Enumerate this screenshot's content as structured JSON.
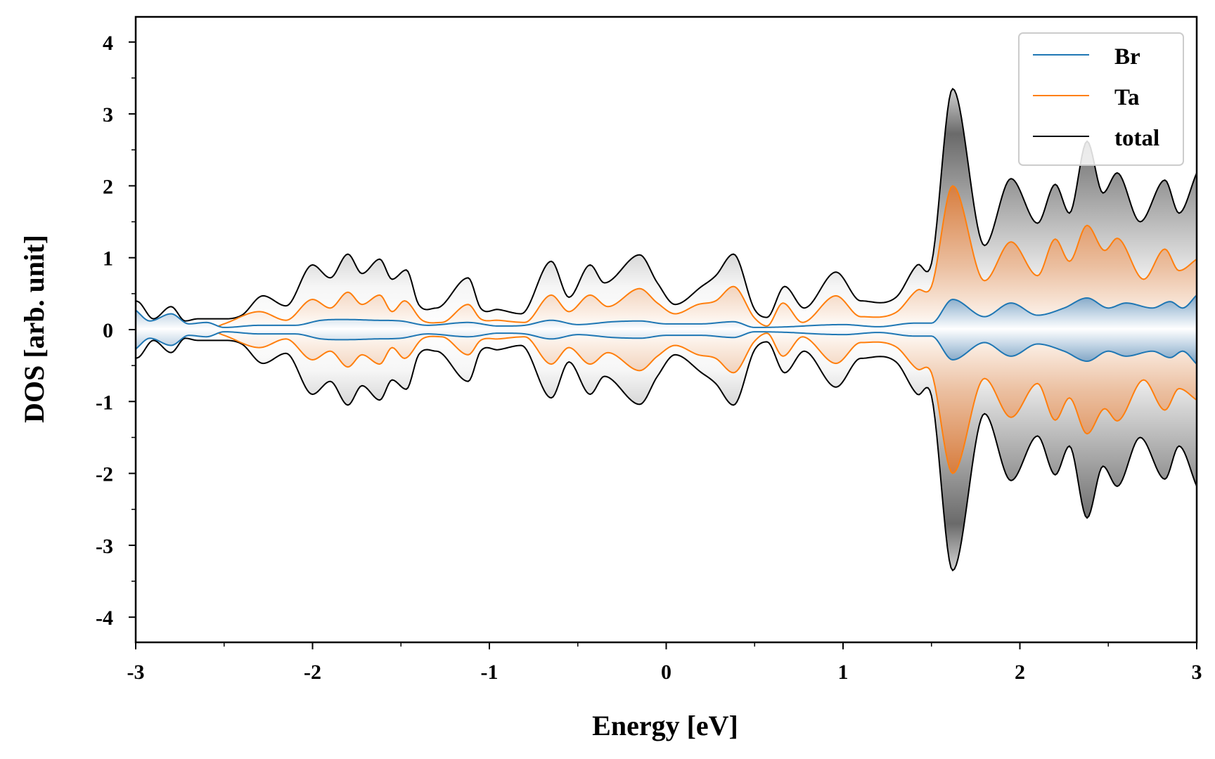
{
  "chart_data": {
    "type": "line",
    "title": "",
    "xlabel": "Energy [eV]",
    "ylabel": "DOS [arb. unit]",
    "xlim": [
      -3,
      3
    ],
    "ylim": [
      -4.35,
      4.35
    ],
    "x_ticks": [
      -3,
      -2,
      -1,
      0,
      1,
      2,
      3
    ],
    "x_tick_labels": [
      "-3",
      "-2",
      "-1",
      "0",
      "1",
      "2",
      "3"
    ],
    "y_ticks": [
      -4,
      -3,
      -2,
      -1,
      0,
      1,
      2,
      3,
      4
    ],
    "y_tick_labels": [
      "-4",
      "-3",
      "-2",
      "-1",
      "0",
      "1",
      "2",
      "3",
      "4"
    ],
    "symmetric_about_zero": true,
    "grid": false,
    "legend_position": "top-right",
    "legend": [
      "Br",
      "Ta",
      "total"
    ],
    "series": [
      {
        "name": "Br",
        "color": "#1f77b4",
        "fill": "gradient-blue",
        "points": [
          [
            -3.0,
            0.27
          ],
          [
            -2.92,
            0.12
          ],
          [
            -2.8,
            0.22
          ],
          [
            -2.7,
            0.08
          ],
          [
            -2.6,
            0.1
          ],
          [
            -2.5,
            0.03
          ],
          [
            -2.3,
            0.06
          ],
          [
            -2.1,
            0.06
          ],
          [
            -1.95,
            0.13
          ],
          [
            -1.8,
            0.14
          ],
          [
            -1.65,
            0.13
          ],
          [
            -1.5,
            0.12
          ],
          [
            -1.35,
            0.06
          ],
          [
            -1.12,
            0.1
          ],
          [
            -0.95,
            0.05
          ],
          [
            -0.8,
            0.06
          ],
          [
            -0.65,
            0.13
          ],
          [
            -0.5,
            0.07
          ],
          [
            -0.3,
            0.11
          ],
          [
            -0.15,
            0.12
          ],
          [
            0.0,
            0.08
          ],
          [
            0.2,
            0.08
          ],
          [
            0.38,
            0.11
          ],
          [
            0.5,
            0.03
          ],
          [
            0.7,
            0.04
          ],
          [
            0.85,
            0.06
          ],
          [
            1.0,
            0.07
          ],
          [
            1.2,
            0.04
          ],
          [
            1.4,
            0.09
          ],
          [
            1.5,
            0.09
          ],
          [
            1.62,
            0.42
          ],
          [
            1.8,
            0.18
          ],
          [
            1.95,
            0.37
          ],
          [
            2.1,
            0.2
          ],
          [
            2.25,
            0.3
          ],
          [
            2.38,
            0.44
          ],
          [
            2.5,
            0.3
          ],
          [
            2.6,
            0.37
          ],
          [
            2.75,
            0.3
          ],
          [
            2.85,
            0.39
          ],
          [
            2.92,
            0.3
          ],
          [
            3.0,
            0.48
          ]
        ]
      },
      {
        "name": "Ta",
        "color": "#ff7f0e",
        "fill": "gradient-orange",
        "points": [
          [
            -3.0,
            0.0
          ],
          [
            -2.8,
            0.0
          ],
          [
            -2.6,
            0.0
          ],
          [
            -2.5,
            0.08
          ],
          [
            -2.3,
            0.25
          ],
          [
            -2.15,
            0.13
          ],
          [
            -2.0,
            0.42
          ],
          [
            -1.9,
            0.3
          ],
          [
            -1.8,
            0.52
          ],
          [
            -1.72,
            0.35
          ],
          [
            -1.62,
            0.48
          ],
          [
            -1.55,
            0.25
          ],
          [
            -1.48,
            0.4
          ],
          [
            -1.38,
            0.13
          ],
          [
            -1.27,
            0.1
          ],
          [
            -1.12,
            0.35
          ],
          [
            -1.05,
            0.15
          ],
          [
            -0.95,
            0.13
          ],
          [
            -0.8,
            0.1
          ],
          [
            -0.65,
            0.48
          ],
          [
            -0.55,
            0.25
          ],
          [
            -0.43,
            0.48
          ],
          [
            -0.33,
            0.32
          ],
          [
            -0.15,
            0.57
          ],
          [
            -0.05,
            0.37
          ],
          [
            0.05,
            0.22
          ],
          [
            0.18,
            0.35
          ],
          [
            0.28,
            0.4
          ],
          [
            0.38,
            0.6
          ],
          [
            0.5,
            0.16
          ],
          [
            0.57,
            0.05
          ],
          [
            0.66,
            0.37
          ],
          [
            0.77,
            0.1
          ],
          [
            0.96,
            0.47
          ],
          [
            1.1,
            0.18
          ],
          [
            1.3,
            0.24
          ],
          [
            1.42,
            0.55
          ],
          [
            1.5,
            0.6
          ],
          [
            1.62,
            2.0
          ],
          [
            1.8,
            0.68
          ],
          [
            1.95,
            1.22
          ],
          [
            2.1,
            0.75
          ],
          [
            2.2,
            1.26
          ],
          [
            2.28,
            0.95
          ],
          [
            2.38,
            1.45
          ],
          [
            2.48,
            1.1
          ],
          [
            2.55,
            1.27
          ],
          [
            2.7,
            0.7
          ],
          [
            2.82,
            1.12
          ],
          [
            2.9,
            0.82
          ],
          [
            3.0,
            0.98
          ]
        ]
      },
      {
        "name": "total",
        "color": "#000000",
        "fill": "gradient-gray",
        "points": [
          [
            -3.0,
            0.4
          ],
          [
            -2.98,
            0.38
          ],
          [
            -2.9,
            0.15
          ],
          [
            -2.8,
            0.32
          ],
          [
            -2.72,
            0.12
          ],
          [
            -2.65,
            0.15
          ],
          [
            -2.5,
            0.15
          ],
          [
            -2.4,
            0.2
          ],
          [
            -2.28,
            0.47
          ],
          [
            -2.15,
            0.33
          ],
          [
            -2.0,
            0.9
          ],
          [
            -1.9,
            0.72
          ],
          [
            -1.8,
            1.05
          ],
          [
            -1.72,
            0.78
          ],
          [
            -1.62,
            0.98
          ],
          [
            -1.55,
            0.7
          ],
          [
            -1.47,
            0.83
          ],
          [
            -1.4,
            0.35
          ],
          [
            -1.3,
            0.3
          ],
          [
            -1.12,
            0.72
          ],
          [
            -1.05,
            0.3
          ],
          [
            -0.95,
            0.28
          ],
          [
            -0.82,
            0.22
          ],
          [
            -0.65,
            0.95
          ],
          [
            -0.55,
            0.45
          ],
          [
            -0.43,
            0.9
          ],
          [
            -0.35,
            0.65
          ],
          [
            -0.15,
            1.04
          ],
          [
            -0.05,
            0.65
          ],
          [
            0.05,
            0.35
          ],
          [
            0.2,
            0.6
          ],
          [
            0.28,
            0.75
          ],
          [
            0.38,
            1.05
          ],
          [
            0.5,
            0.28
          ],
          [
            0.57,
            0.17
          ],
          [
            0.67,
            0.6
          ],
          [
            0.78,
            0.3
          ],
          [
            0.96,
            0.8
          ],
          [
            1.1,
            0.4
          ],
          [
            1.3,
            0.45
          ],
          [
            1.42,
            0.9
          ],
          [
            1.5,
            0.92
          ],
          [
            1.62,
            3.35
          ],
          [
            1.8,
            1.17
          ],
          [
            1.95,
            2.1
          ],
          [
            2.1,
            1.48
          ],
          [
            2.2,
            2.02
          ],
          [
            2.28,
            1.62
          ],
          [
            2.38,
            2.62
          ],
          [
            2.47,
            1.9
          ],
          [
            2.55,
            2.18
          ],
          [
            2.68,
            1.5
          ],
          [
            2.82,
            2.08
          ],
          [
            2.9,
            1.62
          ],
          [
            3.0,
            2.18
          ]
        ]
      }
    ]
  }
}
